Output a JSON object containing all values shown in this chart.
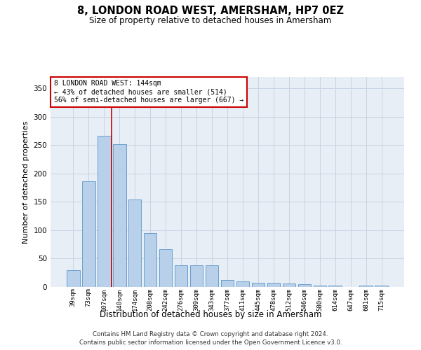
{
  "title": "8, LONDON ROAD WEST, AMERSHAM, HP7 0EZ",
  "subtitle": "Size of property relative to detached houses in Amersham",
  "xlabel": "Distribution of detached houses by size in Amersham",
  "ylabel": "Number of detached properties",
  "categories": [
    "39sqm",
    "73sqm",
    "107sqm",
    "140sqm",
    "174sqm",
    "208sqm",
    "242sqm",
    "276sqm",
    "309sqm",
    "343sqm",
    "377sqm",
    "411sqm",
    "445sqm",
    "478sqm",
    "512sqm",
    "546sqm",
    "580sqm",
    "614sqm",
    "647sqm",
    "681sqm",
    "715sqm"
  ],
  "values": [
    30,
    186,
    267,
    252,
    154,
    95,
    66,
    38,
    38,
    38,
    12,
    10,
    8,
    7,
    6,
    5,
    3,
    2,
    0,
    2,
    2
  ],
  "bar_color": "#b8d0ea",
  "bar_edge_color": "#6aa0cc",
  "vline_x": 2.5,
  "vline_color": "#cc0000",
  "annotation_text_line1": "8 LONDON ROAD WEST: 144sqm",
  "annotation_text_line2": "← 43% of detached houses are smaller (514)",
  "annotation_text_line3": "56% of semi-detached houses are larger (667) →",
  "annotation_box_edgecolor": "#cc0000",
  "annotation_bg": "white",
  "ylim": [
    0,
    370
  ],
  "yticks": [
    0,
    50,
    100,
    150,
    200,
    250,
    300,
    350
  ],
  "grid_color": "#c8d4e4",
  "bg_color": "#e8eef6",
  "footer_line1": "Contains HM Land Registry data © Crown copyright and database right 2024.",
  "footer_line2": "Contains public sector information licensed under the Open Government Licence v3.0."
}
